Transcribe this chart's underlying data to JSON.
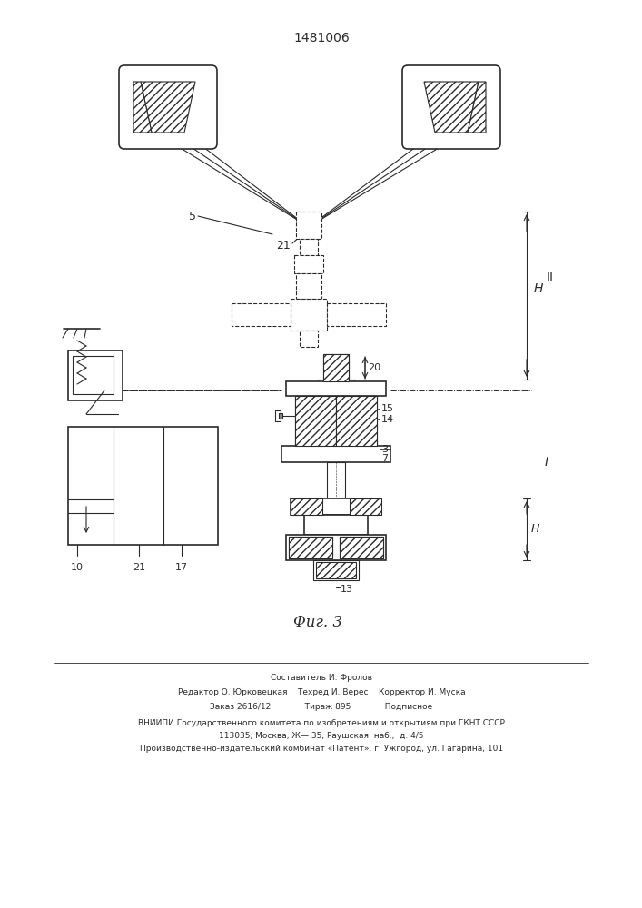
{
  "title": "1481006",
  "fig_label": "Фиг. 3",
  "bg_color": "#ffffff",
  "line_color": "#2a2a2a",
  "footer_lines": [
    "Составитель И. Фролов",
    "Редактор О. Юрковецкая    Техред И. Верес    Корректор И. Муска",
    "Заказ 2616/12             Тираж 895             Подписное",
    "ВНИИПИ Государственного комитета по изобретениям и открытиям при ГКНТ СССР",
    "113035, Москва, Ж— 35, Раушская  наб.,  д. 4/5",
    "Производственно-издательский комбинат «Патент», г. Ужгород, ул. Гагарина, 101"
  ]
}
